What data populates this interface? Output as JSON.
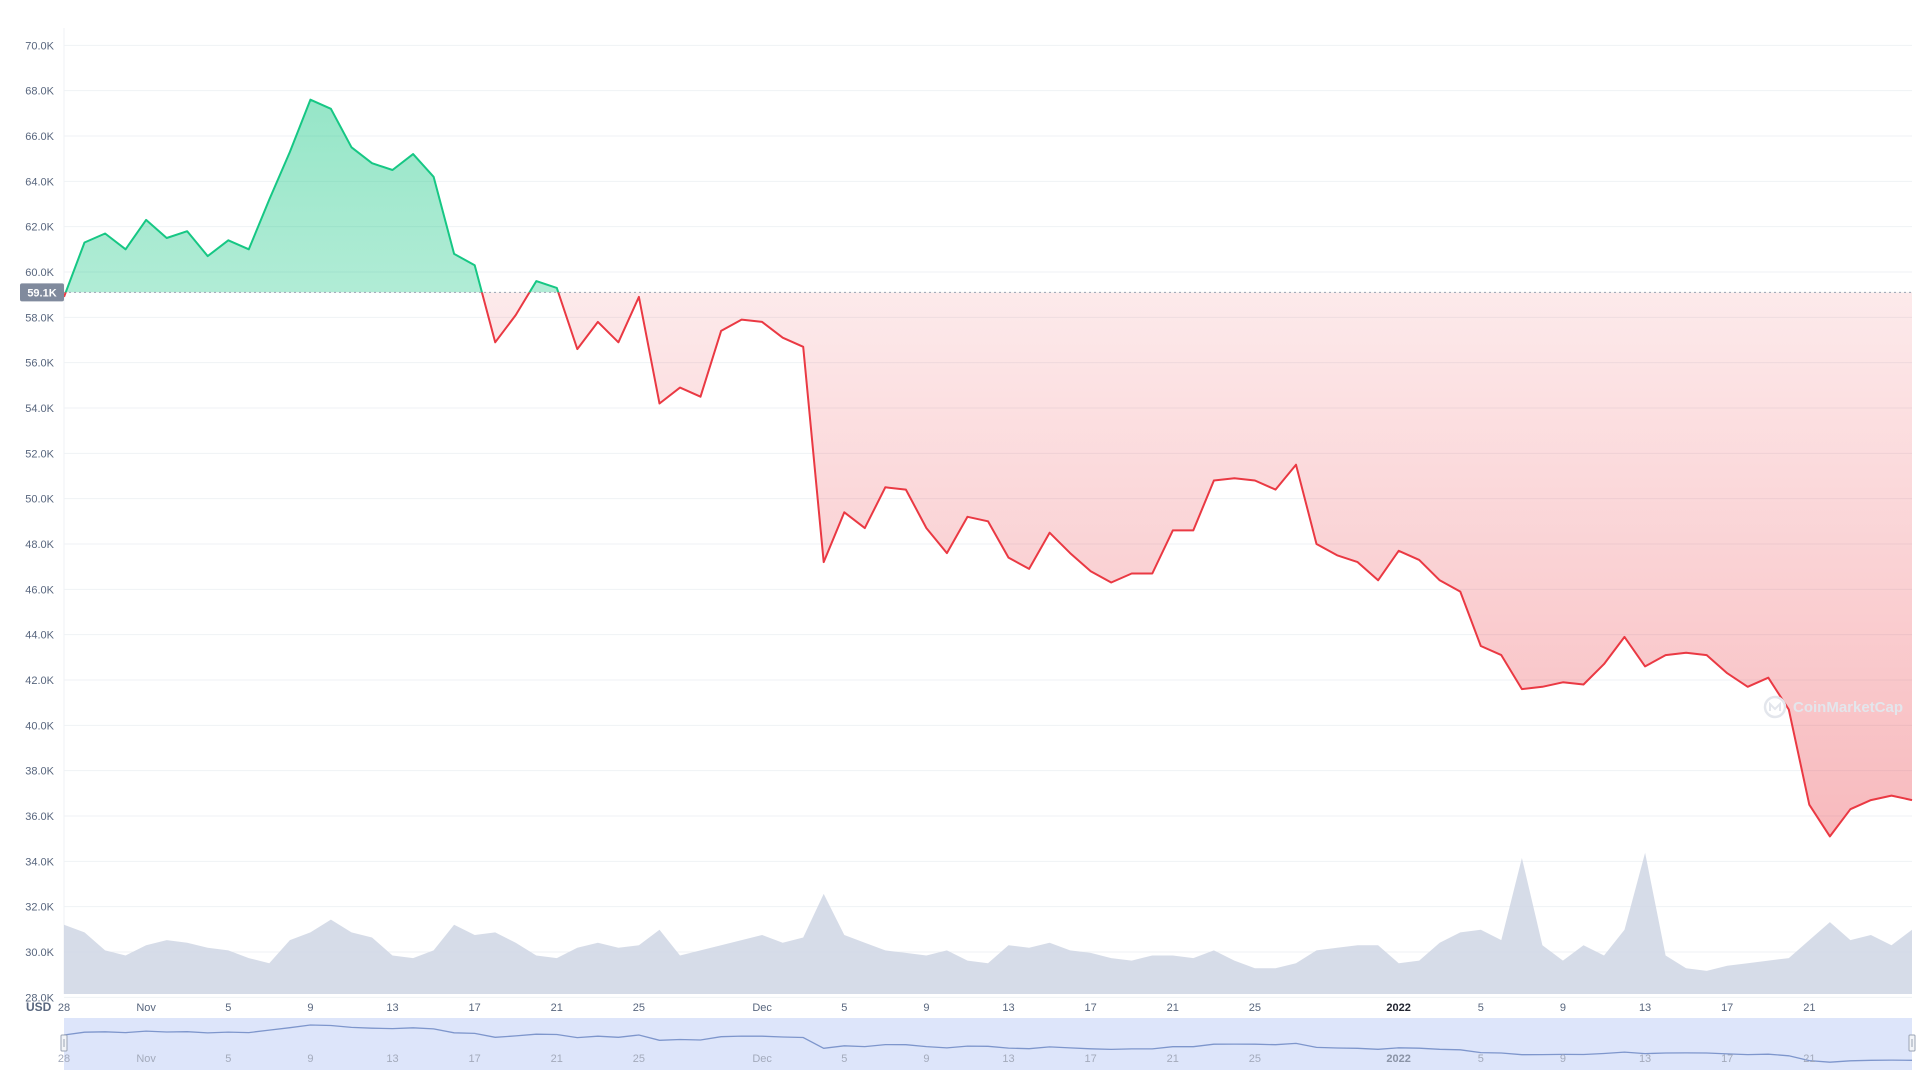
{
  "chart_data": {
    "type": "line",
    "currency_label": "USD",
    "reference_value": 59100,
    "reference_label": "59.1K",
    "watermark": "CoinMarketCap",
    "ylim": [
      27000,
      70500
    ],
    "y_ticks": [
      {
        "value": 70000,
        "label": "70.0K"
      },
      {
        "value": 68000,
        "label": "68.0K"
      },
      {
        "value": 66000,
        "label": "66.0K"
      },
      {
        "value": 64000,
        "label": "64.0K"
      },
      {
        "value": 62000,
        "label": "62.0K"
      },
      {
        "value": 60000,
        "label": "60.0K"
      },
      {
        "value": 58000,
        "label": "58.0K"
      },
      {
        "value": 56000,
        "label": "56.0K"
      },
      {
        "value": 54000,
        "label": "54.0K"
      },
      {
        "value": 52000,
        "label": "52.0K"
      },
      {
        "value": 50000,
        "label": "50.0K"
      },
      {
        "value": 48000,
        "label": "48.0K"
      },
      {
        "value": 46000,
        "label": "46.0K"
      },
      {
        "value": 44000,
        "label": "44.0K"
      },
      {
        "value": 42000,
        "label": "42.0K"
      },
      {
        "value": 40000,
        "label": "40.0K"
      },
      {
        "value": 38000,
        "label": "38.0K"
      },
      {
        "value": 36000,
        "label": "36.0K"
      },
      {
        "value": 34000,
        "label": "34.0K"
      },
      {
        "value": 32000,
        "label": "32.0K"
      },
      {
        "value": 30000,
        "label": "30.0K"
      },
      {
        "value": 28000,
        "label": "28.0K"
      }
    ],
    "x_range": [
      "2021-10-28",
      "2022-01-26"
    ],
    "x_ticks": [
      {
        "date": "2021-10-28",
        "label": "28",
        "bold": false
      },
      {
        "date": "2021-11-01",
        "label": "Nov",
        "bold": false
      },
      {
        "date": "2021-11-05",
        "label": "5",
        "bold": false
      },
      {
        "date": "2021-11-09",
        "label": "9",
        "bold": false
      },
      {
        "date": "2021-11-13",
        "label": "13",
        "bold": false
      },
      {
        "date": "2021-11-17",
        "label": "17",
        "bold": false
      },
      {
        "date": "2021-11-21",
        "label": "21",
        "bold": false
      },
      {
        "date": "2021-11-25",
        "label": "25",
        "bold": false
      },
      {
        "date": "2021-12-01",
        "label": "Dec",
        "bold": false
      },
      {
        "date": "2021-12-05",
        "label": "5",
        "bold": false
      },
      {
        "date": "2021-12-09",
        "label": "9",
        "bold": false
      },
      {
        "date": "2021-12-13",
        "label": "13",
        "bold": false
      },
      {
        "date": "2021-12-17",
        "label": "17",
        "bold": false
      },
      {
        "date": "2021-12-21",
        "label": "21",
        "bold": false
      },
      {
        "date": "2021-12-25",
        "label": "25",
        "bold": false
      },
      {
        "date": "2022-01-01",
        "label": "2022",
        "bold": true
      },
      {
        "date": "2022-01-05",
        "label": "5",
        "bold": false
      },
      {
        "date": "2022-01-09",
        "label": "9",
        "bold": false
      },
      {
        "date": "2022-01-13",
        "label": "13",
        "bold": false
      },
      {
        "date": "2022-01-17",
        "label": "17",
        "bold": false
      },
      {
        "date": "2022-01-21",
        "label": "21",
        "bold": false
      }
    ],
    "series": [
      {
        "points": [
          [
            "2021-10-28",
            58900
          ],
          [
            "2021-10-29",
            61300
          ],
          [
            "2021-10-30",
            61700
          ],
          [
            "2021-10-31",
            61000
          ],
          [
            "2021-11-01",
            62300
          ],
          [
            "2021-11-02",
            61500
          ],
          [
            "2021-11-03",
            61800
          ],
          [
            "2021-11-04",
            60700
          ],
          [
            "2021-11-05",
            61400
          ],
          [
            "2021-11-06",
            61000
          ],
          [
            "2021-11-07",
            63200
          ],
          [
            "2021-11-08",
            65300
          ],
          [
            "2021-11-09",
            67600
          ],
          [
            "2021-11-10",
            67200
          ],
          [
            "2021-11-11",
            65500
          ],
          [
            "2021-11-12",
            64800
          ],
          [
            "2021-11-13",
            64500
          ],
          [
            "2021-11-14",
            65200
          ],
          [
            "2021-11-15",
            64200
          ],
          [
            "2021-11-16",
            60800
          ],
          [
            "2021-11-17",
            60300
          ],
          [
            "2021-11-18",
            56900
          ],
          [
            "2021-11-19",
            58100
          ],
          [
            "2021-11-20",
            59600
          ],
          [
            "2021-11-21",
            59300
          ],
          [
            "2021-11-22",
            56600
          ],
          [
            "2021-11-23",
            57800
          ],
          [
            "2021-11-24",
            56900
          ],
          [
            "2021-11-25",
            58900
          ],
          [
            "2021-11-26",
            54200
          ],
          [
            "2021-11-27",
            54900
          ],
          [
            "2021-11-28",
            54500
          ],
          [
            "2021-11-29",
            57400
          ],
          [
            "2021-11-30",
            57900
          ],
          [
            "2021-12-01",
            57800
          ],
          [
            "2021-12-02",
            57100
          ],
          [
            "2021-12-03",
            56700
          ],
          [
            "2021-12-04",
            47200
          ],
          [
            "2021-12-05",
            49400
          ],
          [
            "2021-12-06",
            48700
          ],
          [
            "2021-12-07",
            50500
          ],
          [
            "2021-12-08",
            50400
          ],
          [
            "2021-12-09",
            48700
          ],
          [
            "2021-12-10",
            47600
          ],
          [
            "2021-12-11",
            49200
          ],
          [
            "2021-12-12",
            49000
          ],
          [
            "2021-12-13",
            47400
          ],
          [
            "2021-12-14",
            46900
          ],
          [
            "2021-12-15",
            48500
          ],
          [
            "2021-12-16",
            47600
          ],
          [
            "2021-12-17",
            46800
          ],
          [
            "2021-12-18",
            46300
          ],
          [
            "2021-12-19",
            46700
          ],
          [
            "2021-12-20",
            46700
          ],
          [
            "2021-12-21",
            48600
          ],
          [
            "2021-12-22",
            48600
          ],
          [
            "2021-12-23",
            50800
          ],
          [
            "2021-12-24",
            50900
          ],
          [
            "2021-12-25",
            50800
          ],
          [
            "2021-12-26",
            50400
          ],
          [
            "2021-12-27",
            51500
          ],
          [
            "2021-12-28",
            48000
          ],
          [
            "2021-12-29",
            47500
          ],
          [
            "2021-12-30",
            47200
          ],
          [
            "2021-12-31",
            46400
          ],
          [
            "2022-01-01",
            47700
          ],
          [
            "2022-01-02",
            47300
          ],
          [
            "2022-01-03",
            46400
          ],
          [
            "2022-01-04",
            45900
          ],
          [
            "2022-01-05",
            43500
          ],
          [
            "2022-01-06",
            43100
          ],
          [
            "2022-01-07",
            41600
          ],
          [
            "2022-01-08",
            41700
          ],
          [
            "2022-01-09",
            41900
          ],
          [
            "2022-01-10",
            41800
          ],
          [
            "2022-01-11",
            42700
          ],
          [
            "2022-01-12",
            43900
          ],
          [
            "2022-01-13",
            42600
          ],
          [
            "2022-01-14",
            43100
          ],
          [
            "2022-01-15",
            43200
          ],
          [
            "2022-01-16",
            43100
          ],
          [
            "2022-01-17",
            42300
          ],
          [
            "2022-01-18",
            41700
          ],
          [
            "2022-01-19",
            42100
          ],
          [
            "2022-01-20",
            40700
          ],
          [
            "2022-01-21",
            36500
          ],
          [
            "2022-01-22",
            35100
          ],
          [
            "2022-01-23",
            36300
          ],
          [
            "2022-01-24",
            36700
          ],
          [
            "2022-01-25",
            36900
          ],
          [
            "2022-01-26",
            36700
          ]
        ]
      }
    ],
    "volume": [
      [
        "2021-10-28",
        30.2
      ],
      [
        "2021-10-29",
        29.9
      ],
      [
        "2021-10-30",
        29.2
      ],
      [
        "2021-10-31",
        29.0
      ],
      [
        "2021-11-01",
        29.4
      ],
      [
        "2021-11-02",
        29.6
      ],
      [
        "2021-11-03",
        29.5
      ],
      [
        "2021-11-04",
        29.3
      ],
      [
        "2021-11-05",
        29.2
      ],
      [
        "2021-11-06",
        28.9
      ],
      [
        "2021-11-07",
        28.7
      ],
      [
        "2021-11-08",
        29.6
      ],
      [
        "2021-11-09",
        29.9
      ],
      [
        "2021-11-10",
        30.4
      ],
      [
        "2021-11-11",
        29.9
      ],
      [
        "2021-11-12",
        29.7
      ],
      [
        "2021-11-13",
        29.0
      ],
      [
        "2021-11-14",
        28.9
      ],
      [
        "2021-11-15",
        29.2
      ],
      [
        "2021-11-16",
        30.2
      ],
      [
        "2021-11-17",
        29.8
      ],
      [
        "2021-11-18",
        29.9
      ],
      [
        "2021-11-19",
        29.5
      ],
      [
        "2021-11-20",
        29.0
      ],
      [
        "2021-11-21",
        28.9
      ],
      [
        "2021-11-22",
        29.3
      ],
      [
        "2021-11-23",
        29.5
      ],
      [
        "2021-11-24",
        29.3
      ],
      [
        "2021-11-25",
        29.4
      ],
      [
        "2021-11-26",
        30.0
      ],
      [
        "2021-11-27",
        29.0
      ],
      [
        "2021-11-28",
        29.2
      ],
      [
        "2021-11-29",
        29.4
      ],
      [
        "2021-11-30",
        29.6
      ],
      [
        "2021-12-01",
        29.8
      ],
      [
        "2021-12-02",
        29.5
      ],
      [
        "2021-12-03",
        29.7
      ],
      [
        "2021-12-04",
        31.4
      ],
      [
        "2021-12-05",
        29.8
      ],
      [
        "2021-12-06",
        29.5
      ],
      [
        "2021-12-07",
        29.2
      ],
      [
        "2021-12-08",
        29.1
      ],
      [
        "2021-12-09",
        29.0
      ],
      [
        "2021-12-10",
        29.2
      ],
      [
        "2021-12-11",
        28.8
      ],
      [
        "2021-12-12",
        28.7
      ],
      [
        "2021-12-13",
        29.4
      ],
      [
        "2021-12-14",
        29.3
      ],
      [
        "2021-12-15",
        29.5
      ],
      [
        "2021-12-16",
        29.2
      ],
      [
        "2021-12-17",
        29.1
      ],
      [
        "2021-12-18",
        28.9
      ],
      [
        "2021-12-19",
        28.8
      ],
      [
        "2021-12-20",
        29.0
      ],
      [
        "2021-12-21",
        29.0
      ],
      [
        "2021-12-22",
        28.9
      ],
      [
        "2021-12-23",
        29.2
      ],
      [
        "2021-12-24",
        28.8
      ],
      [
        "2021-12-25",
        28.5
      ],
      [
        "2021-12-26",
        28.5
      ],
      [
        "2021-12-27",
        28.7
      ],
      [
        "2021-12-28",
        29.2
      ],
      [
        "2021-12-29",
        29.3
      ],
      [
        "2021-12-30",
        29.4
      ],
      [
        "2021-12-31",
        29.4
      ],
      [
        "2022-01-01",
        28.7
      ],
      [
        "2022-01-02",
        28.8
      ],
      [
        "2022-01-03",
        29.5
      ],
      [
        "2022-01-04",
        29.9
      ],
      [
        "2022-01-05",
        30.0
      ],
      [
        "2022-01-06",
        29.6
      ],
      [
        "2022-01-07",
        32.8
      ],
      [
        "2022-01-08",
        29.4
      ],
      [
        "2022-01-09",
        28.8
      ],
      [
        "2022-01-10",
        29.4
      ],
      [
        "2022-01-11",
        29.0
      ],
      [
        "2022-01-12",
        30.0
      ],
      [
        "2022-01-13",
        33.0
      ],
      [
        "2022-01-14",
        29.0
      ],
      [
        "2022-01-15",
        28.5
      ],
      [
        "2022-01-16",
        28.4
      ],
      [
        "2022-01-17",
        28.6
      ],
      [
        "2022-01-18",
        28.7
      ],
      [
        "2022-01-19",
        28.8
      ],
      [
        "2022-01-20",
        28.9
      ],
      [
        "2022-01-21",
        29.6
      ],
      [
        "2022-01-22",
        30.3
      ],
      [
        "2022-01-23",
        29.6
      ],
      [
        "2022-01-24",
        29.8
      ],
      [
        "2022-01-25",
        29.4
      ],
      [
        "2022-01-26",
        30.0
      ]
    ],
    "colors": {
      "up": "#16c784",
      "down": "#ea3943",
      "grid": "#eff2f5",
      "axis_text": "#58667e",
      "volume": "#cfd6e4",
      "navigator_fill": "#dde5fa",
      "navigator_line": "#7e96cc",
      "reference_bg": "#808a9d",
      "watermark": "#e3e6ec"
    },
    "grid": true,
    "legend": "none"
  }
}
